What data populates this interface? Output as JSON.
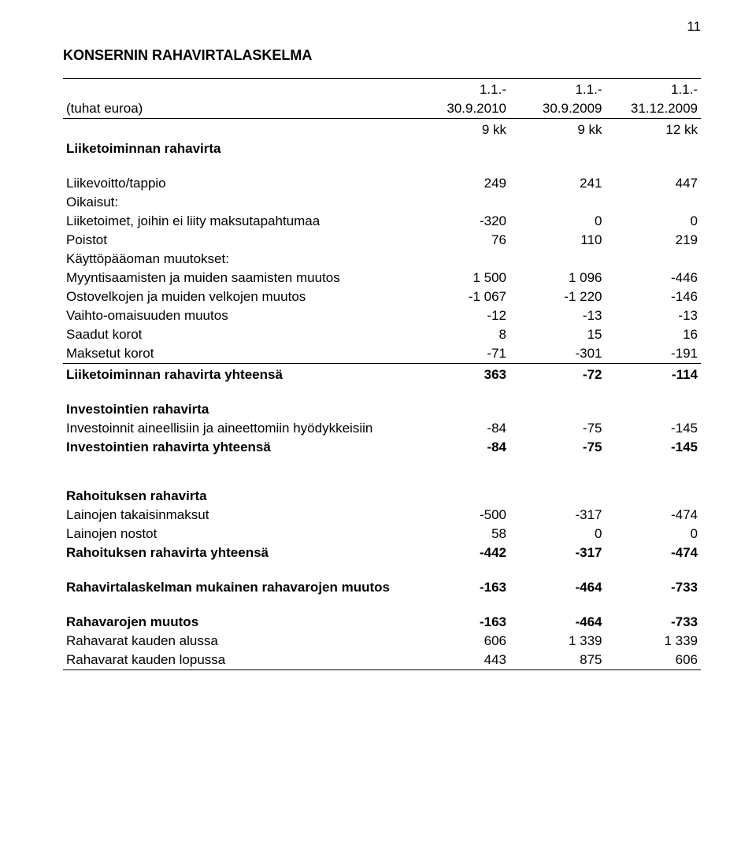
{
  "page_number": "11",
  "title": "KONSERNIN RAHAVIRTALASKELMA",
  "header": {
    "row_label": "(tuhat euroa)",
    "periods_line1": [
      "1.1.-",
      "1.1.-",
      "1.1.-"
    ],
    "periods_line2": [
      "30.9.2010",
      "30.9.2009",
      "31.12.2009"
    ],
    "periods_line3": [
      "9 kk",
      "9 kk",
      "12 kk"
    ]
  },
  "sections": {
    "operating_heading": "Liiketoiminnan rahavirta",
    "operating_rows": [
      {
        "label": "Liikevoitto/tappio",
        "v": [
          "249",
          "241",
          "447"
        ]
      },
      {
        "label": "Oikaisut:",
        "v": [
          "",
          "",
          ""
        ]
      },
      {
        "label": "  Liiketoimet, joihin ei liity maksutapahtumaa",
        "v": [
          "-320",
          "0",
          "0"
        ]
      },
      {
        "label": "  Poistot",
        "v": [
          "76",
          "110",
          "219"
        ]
      },
      {
        "label": "Käyttöpääoman muutokset:",
        "v": [
          "",
          "",
          ""
        ]
      },
      {
        "label": "  Myyntisaamisten ja muiden saamisten muutos",
        "v": [
          "1 500",
          "1 096",
          "-446"
        ]
      },
      {
        "label": "  Ostovelkojen ja muiden velkojen muutos",
        "v": [
          "-1 067",
          "-1 220",
          "-146"
        ]
      },
      {
        "label": "  Vaihto-omaisuuden muutos",
        "v": [
          "-12",
          "-13",
          "-13"
        ]
      },
      {
        "label": "Saadut korot",
        "v": [
          "8",
          "15",
          "16"
        ]
      },
      {
        "label": "Maksetut korot",
        "v": [
          "-71",
          "-301",
          "-191"
        ]
      }
    ],
    "operating_total": {
      "label": "Liiketoiminnan rahavirta yhteensä",
      "v": [
        "363",
        "-72",
        "-114"
      ]
    },
    "investing_heading": "Investointien rahavirta",
    "investing_rows": [
      {
        "label": "Investoinnit aineellisiin ja aineettomiin hyödykkeisiin",
        "v": [
          "-84",
          "-75",
          "-145"
        ]
      }
    ],
    "investing_total": {
      "label": "Investointien rahavirta yhteensä",
      "v": [
        "-84",
        "-75",
        "-145"
      ]
    },
    "financing_heading": "Rahoituksen rahavirta",
    "financing_rows": [
      {
        "label": "Lainojen takaisinmaksut",
        "v": [
          "-500",
          "-317",
          "-474"
        ]
      },
      {
        "label": "Lainojen nostot",
        "v": [
          "58",
          "0",
          "0"
        ]
      }
    ],
    "financing_total": {
      "label": "Rahoituksen rahavirta yhteensä",
      "v": [
        "-442",
        "-317",
        "-474"
      ]
    },
    "netchange": {
      "label": "Rahavirtalaskelman mukainen rahavarojen muutos",
      "v": [
        "-163",
        "-464",
        "-733"
      ]
    },
    "cash_rows": [
      {
        "label": "Rahavarojen muutos",
        "v": [
          "-163",
          "-464",
          "-733"
        ],
        "bold": true
      },
      {
        "label": "Rahavarat kauden alussa",
        "v": [
          "606",
          "1 339",
          "1 339"
        ],
        "bold": false
      },
      {
        "label": "Rahavarat kauden lopussa",
        "v": [
          "443",
          "875",
          "606"
        ],
        "bold": false
      }
    ]
  }
}
